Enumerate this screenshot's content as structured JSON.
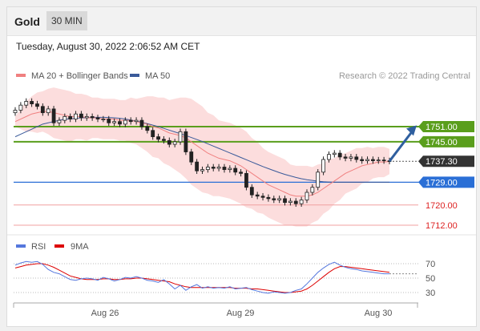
{
  "header": {
    "title": "Gold",
    "timeframe": "30 MIN"
  },
  "datetime": "Tuesday, August 30, 2022 2:06:52 AM CET",
  "legend": {
    "ma20_label": "MA 20 + Bollinger Bands",
    "ma50_label": "MA 50",
    "credit": "Research © 2022 Trading Central",
    "rsi_label": "RSI",
    "ma9_label": "9MA"
  },
  "colors": {
    "ma20": "#f08080",
    "ma50": "#3a5a9a",
    "bands": "#fbd4d4",
    "resistance": "#5a9e1c",
    "support_line": "#2a6fd6",
    "pivot_line": "#f0a0a0",
    "current_label": "#333333",
    "rsi": "#5577dd",
    "rsi_ma": "#dd0000",
    "forecast_arrow": "#2f5f9f"
  },
  "chart_data": [
    {
      "type": "candlestick",
      "title": "Gold",
      "timeframe": "30 MIN",
      "x_tick_labels": [
        "Aug 26",
        "Aug 29",
        "Aug 30"
      ],
      "y_range": [
        1704,
        1768
      ],
      "levels": [
        {
          "label": "1751.00",
          "value": 1751.0,
          "kind": "resistance"
        },
        {
          "label": "1745.00",
          "value": 1745.0,
          "kind": "resistance"
        },
        {
          "label": "1737.30",
          "value": 1737.3,
          "kind": "current"
        },
        {
          "label": "1729.00",
          "value": 1729.0,
          "kind": "pivot"
        },
        {
          "label": "1720.00",
          "value": 1720.0,
          "kind": "support"
        },
        {
          "label": "1712.00",
          "value": 1712.0,
          "kind": "support"
        }
      ],
      "close": [
        1757.5,
        1759.5,
        1761.0,
        1760.0,
        1759.0,
        1756.5,
        1758.0,
        1752.5,
        1753.5,
        1755.0,
        1754.0,
        1756.0,
        1754.5,
        1755.0,
        1754.5,
        1754.0,
        1754.0,
        1752.5,
        1753.0,
        1752.0,
        1753.5,
        1753.0,
        1753.5,
        1751.0,
        1749.5,
        1747.0,
        1746.0,
        1745.5,
        1744.0,
        1745.0,
        1749.0,
        1741.0,
        1737.0,
        1733.5,
        1734.0,
        1735.0,
        1734.5,
        1735.0,
        1734.0,
        1734.5,
        1733.0,
        1732.5,
        1727.0,
        1724.0,
        1723.5,
        1723.0,
        1722.5,
        1722.0,
        1722.5,
        1721.0,
        1721.5,
        1720.5,
        1722.0,
        1725.0,
        1727.0,
        1733.0,
        1738.0,
        1740.0,
        1740.5,
        1739.0,
        1738.5,
        1739.0,
        1738.0,
        1737.5,
        1738.0,
        1737.5,
        1737.8,
        1737.5,
        1737.3
      ],
      "ma20": [
        1753.0,
        1754.0,
        1755.0,
        1756.0,
        1756.5,
        1757.0,
        1757.0,
        1756.5,
        1756.0,
        1755.5,
        1755.0,
        1755.0,
        1755.0,
        1754.5,
        1754.5,
        1754.5,
        1754.0,
        1754.0,
        1754.0,
        1753.5,
        1753.5,
        1753.5,
        1753.0,
        1752.5,
        1752.0,
        1751.0,
        1750.5,
        1749.5,
        1748.5,
        1748.0,
        1747.5,
        1746.5,
        1745.0,
        1743.5,
        1742.0,
        1740.5,
        1739.5,
        1738.5,
        1738.0,
        1737.5,
        1736.5,
        1735.5,
        1734.0,
        1732.5,
        1731.0,
        1729.5,
        1728.0,
        1727.0,
        1726.0,
        1725.0,
        1724.0,
        1723.5,
        1723.5,
        1723.5,
        1724.0,
        1725.0,
        1726.5,
        1728.0,
        1729.5,
        1731.0,
        1732.5,
        1733.5,
        1734.5,
        1735.5,
        1736.0,
        1736.5,
        1737.0,
        1737.0,
        1737.2
      ],
      "ma50": [
        1747.0,
        1748.0,
        1749.0,
        1750.0,
        1751.0,
        1752.0,
        1752.5,
        1753.0,
        1753.5,
        1754.0,
        1754.0,
        1754.3,
        1754.5,
        1754.5,
        1754.7,
        1754.7,
        1754.7,
        1754.6,
        1754.5,
        1754.3,
        1754.0,
        1753.6,
        1753.2,
        1752.7,
        1752.2,
        1751.6,
        1751.0,
        1750.3,
        1749.6,
        1748.9,
        1748.2,
        1747.5,
        1746.7,
        1745.9,
        1745.1,
        1744.2,
        1743.3,
        1742.4,
        1741.5,
        1740.6,
        1739.7,
        1738.8,
        1737.9,
        1737.0,
        1736.1,
        1735.2,
        1734.4,
        1733.6,
        1732.8,
        1732.1,
        1731.5,
        1730.9,
        1730.4,
        1730.0,
        1729.7,
        1729.4,
        1729.2,
        1729.1,
        1729.0,
        1729.0,
        1729.0,
        1729.0,
        1729.0,
        1729.0,
        1729.0,
        1729.0,
        1729.0,
        1729.0,
        1729.0
      ]
    },
    {
      "type": "line",
      "title": "RSI",
      "y_ticks": [
        70,
        50,
        30
      ],
      "y_range": [
        20,
        80
      ],
      "series": [
        {
          "name": "RSI",
          "values": [
            68,
            71,
            73,
            72,
            73,
            69,
            62,
            58,
            56,
            52,
            48,
            47,
            49,
            50,
            49,
            47,
            51,
            49,
            46,
            48,
            51,
            50,
            52,
            50,
            47,
            46,
            44,
            48,
            42,
            35,
            40,
            33,
            38,
            41,
            36,
            38,
            36,
            37,
            36,
            38,
            35,
            36,
            37,
            34,
            32,
            30,
            29,
            31,
            30,
            29,
            30,
            33,
            35,
            42,
            50,
            58,
            64,
            69,
            72,
            68,
            65,
            63,
            62,
            60,
            59,
            58,
            57,
            56,
            56
          ]
        },
        {
          "name": "9MA",
          "values": [
            64,
            66,
            68,
            69,
            70,
            70,
            68,
            65,
            61,
            57,
            53,
            51,
            49,
            48,
            48,
            48,
            49,
            49,
            48,
            48,
            49,
            49,
            50,
            50,
            49,
            48,
            47,
            46,
            45,
            42,
            40,
            38,
            37,
            37,
            37,
            37,
            37,
            37,
            37,
            37,
            36,
            36,
            36,
            35,
            35,
            34,
            33,
            32,
            31,
            30,
            30,
            31,
            32,
            35,
            40,
            46,
            52,
            58,
            63,
            66,
            66,
            65,
            64,
            63,
            62,
            61,
            60,
            59,
            58
          ]
        }
      ]
    }
  ]
}
